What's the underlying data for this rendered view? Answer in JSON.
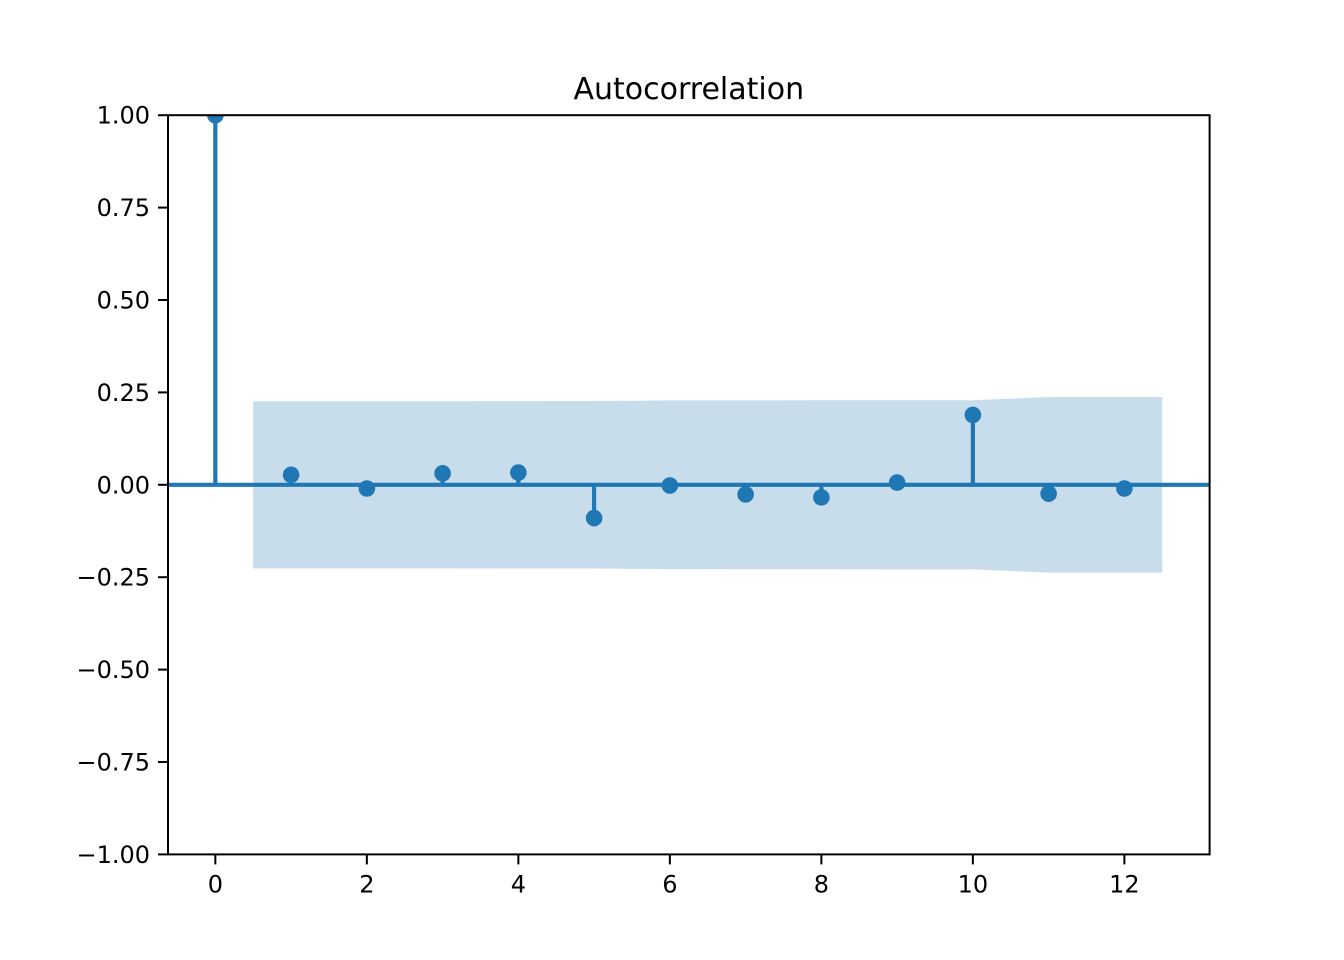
{
  "chart_data": {
    "type": "stem",
    "title": "Autocorrelation",
    "xlabel": "",
    "ylabel": "",
    "grid": false,
    "legend": null,
    "background": "#ffffff",
    "line_color": "#1f77b4",
    "marker_color": "#1f77b4",
    "band_color": "#1f77b4",
    "band_opacity": 0.25,
    "axis_color": "#000000",
    "xlim": [
      -0.625,
      13.125
    ],
    "ylim": [
      -1.0,
      1.0
    ],
    "x": [
      0,
      1,
      2,
      3,
      4,
      5,
      6,
      7,
      8,
      9,
      10,
      11,
      12
    ],
    "values": [
      1.0,
      0.027,
      -0.01,
      0.031,
      0.033,
      -0.09,
      -0.002,
      -0.026,
      -0.034,
      0.006,
      0.189,
      -0.024,
      -0.01
    ],
    "zero_line": 0.0,
    "confidence_band": {
      "x": [
        0.5,
        1,
        2,
        3,
        4,
        5,
        6,
        7,
        8,
        9,
        10,
        11,
        12,
        12.5
      ],
      "upper": [
        0.226,
        0.226,
        0.2261,
        0.2262,
        0.2264,
        0.2266,
        0.2283,
        0.2284,
        0.2286,
        0.2288,
        0.2289,
        0.2375,
        0.2377,
        0.2377
      ],
      "lower": [
        -0.226,
        -0.226,
        -0.2261,
        -0.2262,
        -0.2264,
        -0.2266,
        -0.2283,
        -0.2284,
        -0.2286,
        -0.2288,
        -0.2289,
        -0.2375,
        -0.2377,
        -0.2377
      ]
    },
    "xticks": [
      0,
      2,
      4,
      6,
      8,
      10,
      12
    ],
    "xtick_labels": [
      "0",
      "2",
      "4",
      "6",
      "8",
      "10",
      "12"
    ],
    "yticks": [
      1.0,
      0.75,
      0.5,
      0.25,
      0.0,
      -0.25,
      -0.5,
      -0.75,
      -1.0
    ],
    "ytick_labels": [
      "1.00",
      "0.75",
      "0.50",
      "0.25",
      "0.00",
      "−0.25",
      "−0.50",
      "−0.75",
      "−1.00"
    ]
  }
}
